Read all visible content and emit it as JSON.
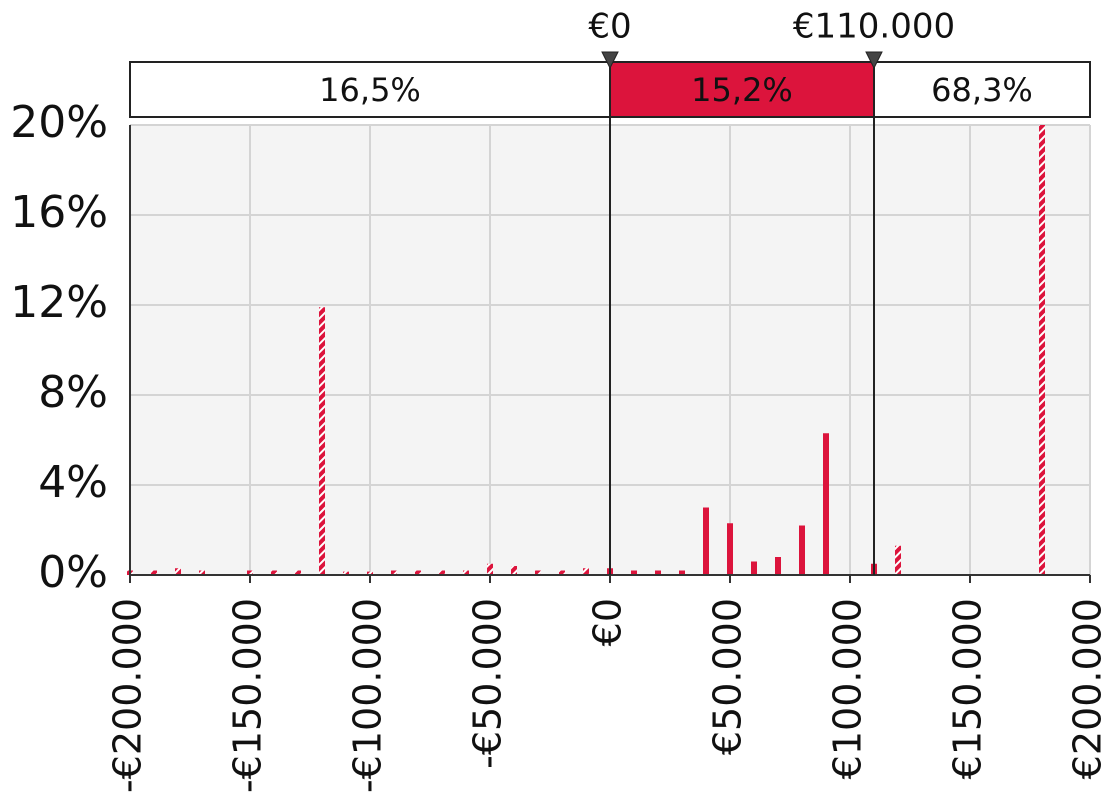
{
  "chart_data": {
    "type": "bar",
    "x": [
      -200000,
      -190000,
      -180000,
      -170000,
      -150000,
      -140000,
      -130000,
      -120000,
      -110000,
      -100000,
      -90000,
      -80000,
      -70000,
      -60000,
      -50000,
      -40000,
      -30000,
      -20000,
      -10000,
      0,
      10000,
      20000,
      30000,
      40000,
      50000,
      60000,
      70000,
      80000,
      90000,
      110000,
      120000,
      180000
    ],
    "values": [
      0.2,
      0.2,
      0.3,
      0.2,
      0.2,
      0.2,
      0.2,
      11.9,
      0.15,
      0.15,
      0.2,
      0.2,
      0.2,
      0.2,
      0.5,
      0.4,
      0.2,
      0.2,
      0.3,
      0.3,
      0.2,
      0.2,
      0.2,
      3.0,
      2.3,
      0.6,
      0.8,
      2.2,
      6.3,
      0.5,
      1.3,
      20
    ],
    "color": "#dc143c",
    "xlim": [
      -200000,
      200000
    ],
    "xticks": [
      {
        "value": -200000,
        "label": "-€200.000"
      },
      {
        "value": -150000,
        "label": "-€150.000"
      },
      {
        "value": -100000,
        "label": "-€100.000"
      },
      {
        "value": -50000,
        "label": "-€50.000"
      },
      {
        "value": 0,
        "label": "€0"
      },
      {
        "value": 50000,
        "label": "€50.000"
      },
      {
        "value": 100000,
        "label": "€100.000"
      },
      {
        "value": 150000,
        "label": "€150.000"
      },
      {
        "value": 200000,
        "label": "€200.000"
      }
    ],
    "ylim": [
      0,
      20
    ],
    "yticks": [
      {
        "value": 0,
        "label": "0%"
      },
      {
        "value": 4,
        "label": "4%"
      },
      {
        "value": 8,
        "label": "8%"
      },
      {
        "value": 12,
        "label": "12%"
      },
      {
        "value": 16,
        "label": "16%"
      },
      {
        "value": 20,
        "label": "20%"
      }
    ],
    "grid": true,
    "delimiters": [
      {
        "value": 0,
        "label": "€0"
      },
      {
        "value": 110000,
        "label": "€110.000"
      }
    ],
    "regions": [
      {
        "value": 16.5,
        "label": "16,5%"
      },
      {
        "value": 15.2,
        "label": "15,2%"
      },
      {
        "value": 68.3,
        "label": "68,3%"
      }
    ]
  }
}
